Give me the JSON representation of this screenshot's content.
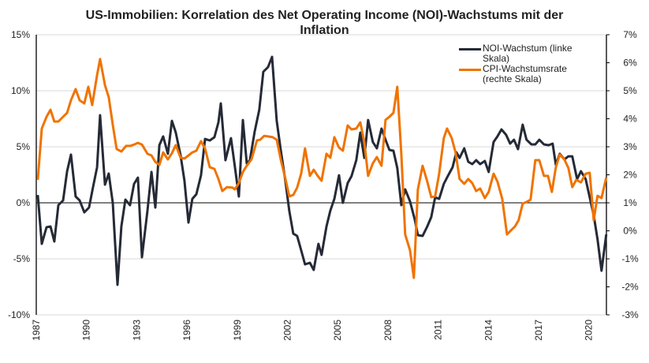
{
  "chart_data": {
    "type": "line",
    "title": "US-Immobilien: Korrelation des Net Operating Income (NOI)-Wachstums mit der Inflation",
    "title_lines": [
      "US-Immobilien: Korrelation des Net Operating Income (NOI)-Wachstums mit der",
      "Inflation"
    ],
    "xlabel": "",
    "ylabel_left": "",
    "ylabel_right": "",
    "xlim": [
      1987,
      2021.05
    ],
    "x_ticks": [
      "1987",
      "1990",
      "1993",
      "1996",
      "1999",
      "2002",
      "2005",
      "2008",
      "2011",
      "2014",
      "2017",
      "2020"
    ],
    "ylim_left": [
      -10,
      15
    ],
    "y_ticks_left": [
      "15%",
      "10%",
      "5%",
      "0%",
      "-5%",
      "-10%"
    ],
    "ylim_right": [
      -3,
      7
    ],
    "y_ticks_right": [
      "7%",
      "6%",
      "5%",
      "4%",
      "3%",
      "2%",
      "1%",
      "0%",
      "-1%",
      "-2%",
      "-3%"
    ],
    "grid": true,
    "legend_position": "top-right",
    "series": [
      {
        "name": "NOI-Wachstum (linke Skala)",
        "axis": "left",
        "color": "#252a36",
        "points": [
          [
            1987.09,
            0.7
          ],
          [
            1987.33,
            -3.66
          ],
          [
            1987.61,
            -2.18
          ],
          [
            1987.85,
            -2.11
          ],
          [
            1988.08,
            -3.45
          ],
          [
            1988.32,
            -0.21
          ],
          [
            1988.6,
            0.21
          ],
          [
            1988.84,
            2.82
          ],
          [
            1989.07,
            4.3
          ],
          [
            1989.35,
            0.56
          ],
          [
            1989.59,
            0.21
          ],
          [
            1989.87,
            -0.85
          ],
          [
            1990.15,
            -0.42
          ],
          [
            1990.39,
            1.41
          ],
          [
            1990.63,
            3.17
          ],
          [
            1990.81,
            7.82
          ],
          [
            1991.1,
            1.62
          ],
          [
            1991.33,
            2.61
          ],
          [
            1991.57,
            0
          ],
          [
            1991.85,
            -7.32
          ],
          [
            1992.08,
            -2.11
          ],
          [
            1992.32,
            0.28
          ],
          [
            1992.6,
            -0.21
          ],
          [
            1992.84,
            1.69
          ],
          [
            1993.07,
            2.25
          ],
          [
            1993.31,
            -4.86
          ],
          [
            1993.64,
            -0.7
          ],
          [
            1993.88,
            2.75
          ],
          [
            1994.11,
            -0.42
          ],
          [
            1994.35,
            5.14
          ],
          [
            1994.58,
            5.92
          ],
          [
            1994.86,
            4.37
          ],
          [
            1995.1,
            7.32
          ],
          [
            1995.33,
            6.27
          ],
          [
            1995.62,
            4.23
          ],
          [
            1995.85,
            1.97
          ],
          [
            1996.09,
            -1.76
          ],
          [
            1996.32,
            0.35
          ],
          [
            1996.56,
            0.77
          ],
          [
            1996.84,
            2.46
          ],
          [
            1997.08,
            5.7
          ],
          [
            1997.36,
            5.56
          ],
          [
            1997.64,
            5.85
          ],
          [
            1997.88,
            7.18
          ],
          [
            1998.02,
            8.87
          ],
          [
            1998.3,
            3.8
          ],
          [
            1998.63,
            5.77
          ],
          [
            1998.82,
            3.66
          ],
          [
            1999.1,
            0.56
          ],
          [
            1999.34,
            7.39
          ],
          [
            1999.57,
            3.52
          ],
          [
            1999.76,
            3.8
          ],
          [
            2000.04,
            6.34
          ],
          [
            2000.32,
            8.31
          ],
          [
            2000.56,
            11.69
          ],
          [
            2000.84,
            12.11
          ],
          [
            2001.08,
            13.03
          ],
          [
            2001.36,
            7.32
          ],
          [
            2001.6,
            4.72
          ],
          [
            2001.88,
            1.9
          ],
          [
            2002.11,
            -0.7
          ],
          [
            2002.35,
            -2.75
          ],
          [
            2002.58,
            -2.96
          ],
          [
            2002.82,
            -4.23
          ],
          [
            2003.05,
            -5.49
          ],
          [
            2003.34,
            -5.35
          ],
          [
            2003.57,
            -5.99
          ],
          [
            2003.85,
            -3.66
          ],
          [
            2004.04,
            -4.65
          ],
          [
            2004.33,
            -2.11
          ],
          [
            2004.56,
            -0.7
          ],
          [
            2004.8,
            0.35
          ],
          [
            2005.08,
            2.46
          ],
          [
            2005.31,
            0
          ],
          [
            2005.6,
            1.76
          ],
          [
            2005.83,
            2.39
          ],
          [
            2006.11,
            3.8
          ],
          [
            2006.35,
            6.27
          ],
          [
            2006.59,
            4.01
          ],
          [
            2006.82,
            7.39
          ],
          [
            2007.1,
            5.42
          ],
          [
            2007.34,
            4.86
          ],
          [
            2007.62,
            6.62
          ],
          [
            2007.86,
            5.63
          ],
          [
            2008.09,
            4.72
          ],
          [
            2008.33,
            4.65
          ],
          [
            2008.56,
            3.1
          ],
          [
            2008.8,
            -0.21
          ],
          [
            2009.03,
            1.2
          ],
          [
            2009.32,
            0.14
          ],
          [
            2009.6,
            -1.48
          ],
          [
            2009.79,
            -2.89
          ],
          [
            2010.07,
            -2.96
          ],
          [
            2010.35,
            -2.11
          ],
          [
            2010.59,
            -1.27
          ],
          [
            2010.82,
            0.49
          ],
          [
            2011.06,
            0.35
          ],
          [
            2011.34,
            1.69
          ],
          [
            2011.58,
            2.39
          ],
          [
            2011.86,
            3.17
          ],
          [
            2012.09,
            4.51
          ],
          [
            2012.28,
            4.01
          ],
          [
            2012.56,
            4.86
          ],
          [
            2012.8,
            3.66
          ],
          [
            2013.04,
            3.45
          ],
          [
            2013.27,
            3.8
          ],
          [
            2013.51,
            3.45
          ],
          [
            2013.79,
            3.73
          ],
          [
            2014.02,
            2.75
          ],
          [
            2014.31,
            5.42
          ],
          [
            2014.54,
            5.92
          ],
          [
            2014.78,
            6.55
          ],
          [
            2015.06,
            6.06
          ],
          [
            2015.3,
            5.28
          ],
          [
            2015.53,
            5.63
          ],
          [
            2015.77,
            4.79
          ],
          [
            2016.05,
            6.97
          ],
          [
            2016.28,
            5.63
          ],
          [
            2016.57,
            5.21
          ],
          [
            2016.8,
            5.21
          ],
          [
            2017.04,
            5.63
          ],
          [
            2017.32,
            5.21
          ],
          [
            2017.6,
            5.14
          ],
          [
            2017.84,
            5.28
          ],
          [
            2018.03,
            3.38
          ],
          [
            2018.26,
            4.37
          ],
          [
            2018.54,
            3.87
          ],
          [
            2018.78,
            4.15
          ],
          [
            2019.01,
            4.15
          ],
          [
            2019.3,
            2.11
          ],
          [
            2019.53,
            2.82
          ],
          [
            2019.81,
            2.11
          ],
          [
            2020.05,
            0.49
          ],
          [
            2020.29,
            -1.13
          ],
          [
            2020.52,
            -3.24
          ],
          [
            2020.76,
            -6.06
          ],
          [
            2021.04,
            -2.82
          ]
        ]
      },
      {
        "name": "CPI-Wachstumsrate (rechte Skala)",
        "axis": "right",
        "color": "#f07300",
        "points": [
          [
            1987.09,
            1.82
          ],
          [
            1987.33,
            3.65
          ],
          [
            1987.61,
            4.07
          ],
          [
            1987.85,
            4.32
          ],
          [
            1988.08,
            3.9
          ],
          [
            1988.32,
            3.9
          ],
          [
            1988.6,
            4.07
          ],
          [
            1988.84,
            4.21
          ],
          [
            1989.07,
            4.66
          ],
          [
            1989.35,
            5.06
          ],
          [
            1989.59,
            4.66
          ],
          [
            1989.87,
            4.55
          ],
          [
            1990.11,
            5.14
          ],
          [
            1990.34,
            4.49
          ],
          [
            1990.63,
            5.56
          ],
          [
            1990.81,
            6.13
          ],
          [
            1991.1,
            5.2
          ],
          [
            1991.33,
            4.77
          ],
          [
            1991.57,
            3.79
          ],
          [
            1991.8,
            2.92
          ],
          [
            1992.08,
            2.83
          ],
          [
            1992.37,
            3.03
          ],
          [
            1992.6,
            3.03
          ],
          [
            1992.84,
            3.08
          ],
          [
            1993.07,
            3.14
          ],
          [
            1993.31,
            3.08
          ],
          [
            1993.64,
            2.75
          ],
          [
            1993.88,
            2.69
          ],
          [
            1994.11,
            2.46
          ],
          [
            1994.35,
            2.35
          ],
          [
            1994.58,
            2.8
          ],
          [
            1994.86,
            2.55
          ],
          [
            1995.1,
            2.77
          ],
          [
            1995.33,
            3.06
          ],
          [
            1995.62,
            2.61
          ],
          [
            1995.85,
            2.58
          ],
          [
            1996.09,
            2.69
          ],
          [
            1996.32,
            2.8
          ],
          [
            1996.56,
            2.86
          ],
          [
            1996.84,
            3.2
          ],
          [
            1997.08,
            2.94
          ],
          [
            1997.36,
            2.27
          ],
          [
            1997.64,
            2.21
          ],
          [
            1997.88,
            1.85
          ],
          [
            1998.11,
            1.42
          ],
          [
            1998.39,
            1.56
          ],
          [
            1998.72,
            1.54
          ],
          [
            1998.86,
            1.48
          ],
          [
            1999.1,
            1.7
          ],
          [
            1999.34,
            2.1
          ],
          [
            1999.57,
            2.32
          ],
          [
            1999.85,
            2.55
          ],
          [
            2000.18,
            3.23
          ],
          [
            2000.37,
            3.25
          ],
          [
            2000.61,
            3.39
          ],
          [
            2000.84,
            3.37
          ],
          [
            2001.12,
            3.34
          ],
          [
            2001.36,
            3.25
          ],
          [
            2001.6,
            2.55
          ],
          [
            2001.88,
            1.85
          ],
          [
            2002.11,
            1.23
          ],
          [
            2002.35,
            1.28
          ],
          [
            2002.58,
            1.54
          ],
          [
            2002.82,
            2.04
          ],
          [
            2003.05,
            2.94
          ],
          [
            2003.34,
            1.96
          ],
          [
            2003.57,
            2.18
          ],
          [
            2003.81,
            1.96
          ],
          [
            2004.04,
            1.79
          ],
          [
            2004.33,
            2.75
          ],
          [
            2004.56,
            2.61
          ],
          [
            2004.8,
            3.34
          ],
          [
            2005.08,
            2.97
          ],
          [
            2005.31,
            2.86
          ],
          [
            2005.6,
            3.76
          ],
          [
            2005.83,
            3.62
          ],
          [
            2006.11,
            3.65
          ],
          [
            2006.35,
            3.87
          ],
          [
            2006.59,
            3.17
          ],
          [
            2006.82,
            1.96
          ],
          [
            2007.1,
            2.41
          ],
          [
            2007.34,
            2.63
          ],
          [
            2007.62,
            2.32
          ],
          [
            2007.86,
            3.96
          ],
          [
            2008.09,
            4.07
          ],
          [
            2008.33,
            4.21
          ],
          [
            2008.56,
            5.14
          ],
          [
            2008.8,
            2.75
          ],
          [
            2009.03,
            -0.13
          ],
          [
            2009.32,
            -0.69
          ],
          [
            2009.55,
            -1.68
          ],
          [
            2009.79,
            1.48
          ],
          [
            2010.07,
            2.32
          ],
          [
            2010.35,
            1.76
          ],
          [
            2010.59,
            1.2
          ],
          [
            2010.82,
            1.23
          ],
          [
            2011.06,
            2.04
          ],
          [
            2011.34,
            3.31
          ],
          [
            2011.53,
            3.65
          ],
          [
            2011.81,
            3.31
          ],
          [
            2012.04,
            2.8
          ],
          [
            2012.28,
            1.85
          ],
          [
            2012.56,
            1.68
          ],
          [
            2012.8,
            1.85
          ],
          [
            2013.04,
            1.7
          ],
          [
            2013.27,
            1.42
          ],
          [
            2013.51,
            1.51
          ],
          [
            2013.79,
            1.17
          ],
          [
            2014.02,
            1.39
          ],
          [
            2014.31,
            2.04
          ],
          [
            2014.54,
            1.76
          ],
          [
            2014.83,
            1.14
          ],
          [
            2015.11,
            -0.13
          ],
          [
            2015.34,
            0.01
          ],
          [
            2015.58,
            0.15
          ],
          [
            2015.81,
            0.38
          ],
          [
            2016.05,
            0.97
          ],
          [
            2016.28,
            1.03
          ],
          [
            2016.52,
            1.11
          ],
          [
            2016.8,
            2.52
          ],
          [
            2017.04,
            2.52
          ],
          [
            2017.32,
            1.96
          ],
          [
            2017.56,
            1.96
          ],
          [
            2017.79,
            1.39
          ],
          [
            2018.03,
            2.27
          ],
          [
            2018.26,
            2.72
          ],
          [
            2018.54,
            2.55
          ],
          [
            2018.78,
            2.24
          ],
          [
            2019.01,
            1.56
          ],
          [
            2019.25,
            1.82
          ],
          [
            2019.53,
            1.73
          ],
          [
            2019.81,
            2.04
          ],
          [
            2020.05,
            2.07
          ],
          [
            2020.29,
            0.38
          ],
          [
            2020.52,
            1.25
          ],
          [
            2020.76,
            1.17
          ],
          [
            2021.04,
            1.9
          ]
        ]
      }
    ],
    "legend": [
      {
        "label_lines": [
          "NOI-Wachstum (linke",
          "Skala)"
        ],
        "color": "#252a36"
      },
      {
        "label_lines": [
          "CPI-Wachstumsrate",
          "(rechte Skala)"
        ],
        "color": "#f07300"
      }
    ]
  }
}
